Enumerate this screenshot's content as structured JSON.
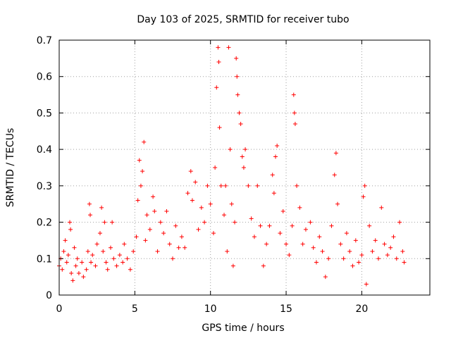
{
  "chart_data": {
    "type": "scatter",
    "title": "Day 103 of 2025, SRMTID for receiver tubo",
    "xlabel": "GPS time / hours",
    "ylabel": "SRMTID / TECUs",
    "xlim": [
      0,
      24.5
    ],
    "ylim": [
      0,
      0.7
    ],
    "x_ticks": [
      0,
      5,
      10,
      15,
      20
    ],
    "x_tick_labels": [
      "0",
      "5",
      "10",
      "15",
      "20"
    ],
    "y_ticks": [
      0,
      0.1,
      0.2,
      0.3,
      0.4,
      0.5,
      0.6,
      0.7
    ],
    "y_tick_labels": [
      "0",
      "0.1",
      "0.2",
      "0.3",
      "0.4",
      "0.5",
      "0.6",
      "0.7"
    ],
    "grid": true,
    "marker": "plus",
    "color": "#ff0000",
    "series": [
      {
        "name": "SRMTID",
        "points": [
          [
            0.0,
            0.08
          ],
          [
            0.1,
            0.1
          ],
          [
            0.2,
            0.07
          ],
          [
            0.3,
            0.12
          ],
          [
            0.4,
            0.15
          ],
          [
            0.5,
            0.09
          ],
          [
            0.6,
            0.11
          ],
          [
            0.7,
            0.2
          ],
          [
            0.75,
            0.18
          ],
          [
            0.8,
            0.06
          ],
          [
            0.9,
            0.04
          ],
          [
            1.0,
            0.13
          ],
          [
            1.1,
            0.08
          ],
          [
            1.2,
            0.1
          ],
          [
            1.3,
            0.06
          ],
          [
            1.5,
            0.09
          ],
          [
            1.6,
            0.05
          ],
          [
            1.8,
            0.07
          ],
          [
            1.9,
            0.12
          ],
          [
            2.0,
            0.25
          ],
          [
            2.05,
            0.22
          ],
          [
            2.1,
            0.09
          ],
          [
            2.2,
            0.11
          ],
          [
            2.4,
            0.08
          ],
          [
            2.5,
            0.14
          ],
          [
            2.7,
            0.17
          ],
          [
            2.8,
            0.24
          ],
          [
            2.9,
            0.12
          ],
          [
            3.0,
            0.2
          ],
          [
            3.1,
            0.09
          ],
          [
            3.2,
            0.07
          ],
          [
            3.4,
            0.13
          ],
          [
            3.5,
            0.2
          ],
          [
            3.6,
            0.1
          ],
          [
            3.8,
            0.08
          ],
          [
            4.0,
            0.11
          ],
          [
            4.2,
            0.09
          ],
          [
            4.3,
            0.14
          ],
          [
            4.5,
            0.1
          ],
          [
            4.7,
            0.07
          ],
          [
            4.9,
            0.12
          ],
          [
            5.1,
            0.16
          ],
          [
            5.2,
            0.26
          ],
          [
            5.3,
            0.37
          ],
          [
            5.4,
            0.3
          ],
          [
            5.5,
            0.34
          ],
          [
            5.6,
            0.42
          ],
          [
            5.7,
            0.15
          ],
          [
            5.8,
            0.22
          ],
          [
            6.0,
            0.18
          ],
          [
            6.2,
            0.27
          ],
          [
            6.3,
            0.23
          ],
          [
            6.5,
            0.12
          ],
          [
            6.7,
            0.2
          ],
          [
            6.9,
            0.17
          ],
          [
            7.1,
            0.23
          ],
          [
            7.3,
            0.14
          ],
          [
            7.5,
            0.1
          ],
          [
            7.7,
            0.19
          ],
          [
            7.9,
            0.13
          ],
          [
            8.1,
            0.16
          ],
          [
            8.3,
            0.13
          ],
          [
            8.5,
            0.28
          ],
          [
            8.7,
            0.34
          ],
          [
            8.8,
            0.26
          ],
          [
            9.0,
            0.31
          ],
          [
            9.2,
            0.18
          ],
          [
            9.4,
            0.24
          ],
          [
            9.6,
            0.2
          ],
          [
            9.8,
            0.3
          ],
          [
            10.0,
            0.25
          ],
          [
            10.2,
            0.17
          ],
          [
            10.3,
            0.35
          ],
          [
            10.4,
            0.57
          ],
          [
            10.5,
            0.68
          ],
          [
            10.55,
            0.64
          ],
          [
            10.6,
            0.46
          ],
          [
            10.7,
            0.3
          ],
          [
            10.9,
            0.22
          ],
          [
            11.0,
            0.3
          ],
          [
            11.1,
            0.12
          ],
          [
            11.2,
            0.68
          ],
          [
            11.3,
            0.4
          ],
          [
            11.4,
            0.25
          ],
          [
            11.5,
            0.08
          ],
          [
            11.6,
            0.2
          ],
          [
            11.7,
            0.65
          ],
          [
            11.75,
            0.6
          ],
          [
            11.8,
            0.55
          ],
          [
            11.9,
            0.5
          ],
          [
            12.0,
            0.47
          ],
          [
            12.1,
            0.38
          ],
          [
            12.2,
            0.35
          ],
          [
            12.3,
            0.4
          ],
          [
            12.5,
            0.3
          ],
          [
            12.7,
            0.21
          ],
          [
            12.9,
            0.16
          ],
          [
            13.1,
            0.3
          ],
          [
            13.3,
            0.19
          ],
          [
            13.5,
            0.08
          ],
          [
            13.7,
            0.14
          ],
          [
            13.9,
            0.19
          ],
          [
            14.1,
            0.33
          ],
          [
            14.2,
            0.28
          ],
          [
            14.3,
            0.38
          ],
          [
            14.4,
            0.41
          ],
          [
            14.6,
            0.17
          ],
          [
            14.8,
            0.23
          ],
          [
            15.0,
            0.14
          ],
          [
            15.2,
            0.11
          ],
          [
            15.4,
            0.19
          ],
          [
            15.5,
            0.55
          ],
          [
            15.55,
            0.5
          ],
          [
            15.6,
            0.47
          ],
          [
            15.7,
            0.3
          ],
          [
            15.9,
            0.24
          ],
          [
            16.1,
            0.14
          ],
          [
            16.3,
            0.18
          ],
          [
            16.6,
            0.2
          ],
          [
            16.8,
            0.13
          ],
          [
            17.0,
            0.09
          ],
          [
            17.2,
            0.16
          ],
          [
            17.4,
            0.12
          ],
          [
            17.6,
            0.05
          ],
          [
            17.8,
            0.1
          ],
          [
            18.0,
            0.19
          ],
          [
            18.2,
            0.33
          ],
          [
            18.3,
            0.39
          ],
          [
            18.4,
            0.25
          ],
          [
            18.6,
            0.14
          ],
          [
            18.8,
            0.1
          ],
          [
            19.0,
            0.17
          ],
          [
            19.2,
            0.12
          ],
          [
            19.4,
            0.08
          ],
          [
            19.6,
            0.15
          ],
          [
            19.8,
            0.09
          ],
          [
            20.0,
            0.11
          ],
          [
            20.1,
            0.27
          ],
          [
            20.2,
            0.3
          ],
          [
            20.3,
            0.03
          ],
          [
            20.5,
            0.19
          ],
          [
            20.7,
            0.12
          ],
          [
            20.9,
            0.15
          ],
          [
            21.1,
            0.1
          ],
          [
            21.3,
            0.24
          ],
          [
            21.5,
            0.14
          ],
          [
            21.7,
            0.11
          ],
          [
            21.9,
            0.13
          ],
          [
            22.1,
            0.16
          ],
          [
            22.3,
            0.1
          ],
          [
            22.5,
            0.2
          ],
          [
            22.7,
            0.12
          ],
          [
            22.8,
            0.09
          ]
        ]
      }
    ]
  }
}
